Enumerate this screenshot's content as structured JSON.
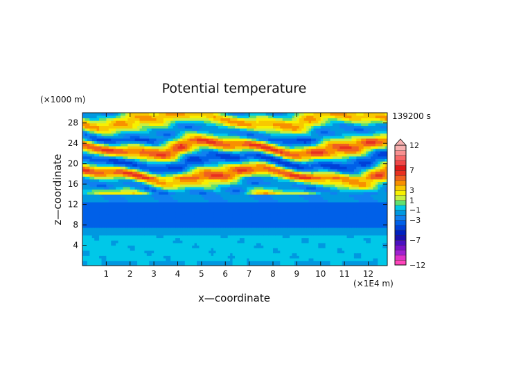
{
  "chart_data": {
    "type": "heatmap",
    "title": "Potential temperature",
    "xlabel": "x—coordinate",
    "ylabel": "z—coordinate",
    "x_unit": "(×1E4 m)",
    "y_unit": "(×1000 m)",
    "time_label": "139200 s",
    "xlim": [
      0,
      12.8
    ],
    "ylim": [
      0,
      30
    ],
    "x_ticks": [
      1,
      2,
      3,
      4,
      5,
      6,
      7,
      8,
      9,
      10,
      11,
      12
    ],
    "y_ticks": [
      4,
      8,
      12,
      16,
      20,
      24,
      28
    ],
    "colorbar": {
      "levels": [
        -12,
        -11,
        -10,
        -9,
        -8,
        -7,
        -6,
        -5,
        -4,
        -3,
        -2,
        -1,
        0,
        1,
        2,
        3,
        4,
        5,
        6,
        7,
        8,
        9,
        10,
        11,
        12
      ],
      "colors": [
        "#ff44bb",
        "#e030c8",
        "#a020d0",
        "#7a10c8",
        "#4a10c0",
        "#1a10b0",
        "#0020c0",
        "#0040d8",
        "#0060e8",
        "#1080f0",
        "#0098e0",
        "#00c8e8",
        "#60e070",
        "#c8f040",
        "#f8f000",
        "#f8c800",
        "#f89000",
        "#f06020",
        "#e83020",
        "#e01818",
        "#f04848",
        "#f86868",
        "#f89090",
        "#f8b0b0"
      ],
      "tick_labels": [
        "12",
        "7",
        "3",
        "1",
        "−1",
        "−3",
        "−7",
        "−12"
      ],
      "tick_values": [
        12,
        7,
        3,
        1,
        -1,
        -3,
        -7,
        -12
      ]
    },
    "layers": [
      {
        "z_range": [
          0,
          1
        ],
        "value": -1.2
      },
      {
        "z_range": [
          1,
          6
        ],
        "value": -0.6
      },
      {
        "z_range": [
          6,
          7.5
        ],
        "value": -1.6
      },
      {
        "z_range": [
          7.5,
          12.5
        ],
        "value": -3.4
      },
      {
        "z_range": [
          12.5,
          14
        ],
        "value": -1.8
      },
      {
        "z_range": [
          14,
          30
        ],
        "value": "wavy field, alternating −3 to +5"
      }
    ]
  }
}
